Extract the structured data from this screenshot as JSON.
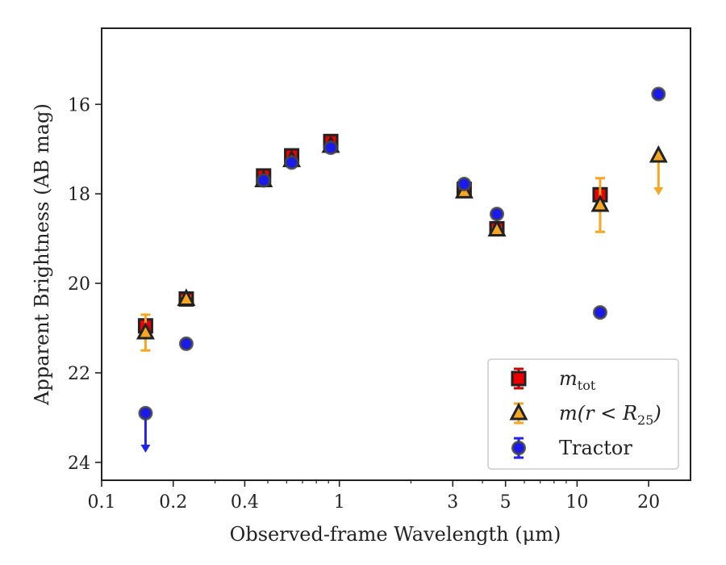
{
  "chart_data": {
    "type": "scatter",
    "title": "",
    "xlabel": "Observed-frame Wavelength (μm)",
    "ylabel": "Apparent Brightness (AB mag)",
    "xscale": "log",
    "xlim": [
      0.1,
      30
    ],
    "ylim": [
      24.4,
      14.3
    ],
    "y_inverted": true,
    "x_ticks": [
      {
        "value": 0.1,
        "label": "0.1"
      },
      {
        "value": 0.2,
        "label": "0.2"
      },
      {
        "value": 0.4,
        "label": "0.4"
      },
      {
        "value": 1,
        "label": "1"
      },
      {
        "value": 3,
        "label": "3"
      },
      {
        "value": 5,
        "label": "5"
      },
      {
        "value": 10,
        "label": "10"
      },
      {
        "value": 20,
        "label": "20"
      }
    ],
    "y_ticks": [
      {
        "value": 16,
        "label": "16"
      },
      {
        "value": 18,
        "label": "18"
      },
      {
        "value": 20,
        "label": "20"
      },
      {
        "value": 22,
        "label": "22"
      },
      {
        "value": 24,
        "label": "24"
      }
    ],
    "grid": false,
    "legend_position": "bottom-right",
    "series": [
      {
        "key": "mtot",
        "name": "m_tot",
        "marker": "square",
        "color": "#ee0000",
        "errcolor": "#cc0000",
        "points": [
          {
            "x": 0.153,
            "y": 20.95,
            "err": 0.05
          },
          {
            "x": 0.227,
            "y": 20.35,
            "err": 0.04
          },
          {
            "x": 0.48,
            "y": 17.6,
            "err": 0.03
          },
          {
            "x": 0.63,
            "y": 17.15,
            "err": 0.03
          },
          {
            "x": 0.92,
            "y": 16.83,
            "err": 0.03
          },
          {
            "x": 3.35,
            "y": 17.9,
            "err": 0.03
          },
          {
            "x": 4.6,
            "y": 18.78,
            "err": 0.04
          },
          {
            "x": 12.5,
            "y": 18.02,
            "err": 0.06
          }
        ]
      },
      {
        "key": "mr25",
        "name": "m(r < R25)",
        "marker": "triangle",
        "color": "#f5a623",
        "errcolor": "#f5a623",
        "points": [
          {
            "x": 0.153,
            "y": 21.1,
            "err": 0.4
          },
          {
            "x": 0.227,
            "y": 20.35,
            "err": 0.05
          },
          {
            "x": 0.48,
            "y": 17.7,
            "err": 0.03
          },
          {
            "x": 0.63,
            "y": 17.25,
            "err": 0.03
          },
          {
            "x": 0.92,
            "y": 16.93,
            "err": 0.03
          },
          {
            "x": 3.35,
            "y": 17.95,
            "err": 0.03
          },
          {
            "x": 4.6,
            "y": 18.8,
            "err": 0.04
          },
          {
            "x": 12.5,
            "y": 18.25,
            "err": 0.6
          },
          {
            "x": 22.0,
            "y": 17.15,
            "upper_limit": true
          }
        ]
      },
      {
        "key": "tractor",
        "name": "Tractor",
        "marker": "circle",
        "color": "#1a1aee",
        "errcolor": "#2222ee",
        "points": [
          {
            "x": 0.153,
            "y": 22.9,
            "upper_limit": true
          },
          {
            "x": 0.227,
            "y": 21.35,
            "err": 0.05
          },
          {
            "x": 0.48,
            "y": 17.7,
            "err": 0.03
          },
          {
            "x": 0.63,
            "y": 17.3,
            "err": 0.03
          },
          {
            "x": 0.92,
            "y": 16.97,
            "err": 0.03
          },
          {
            "x": 3.35,
            "y": 17.78,
            "err": 0.03
          },
          {
            "x": 4.6,
            "y": 18.45,
            "err": 0.04
          },
          {
            "x": 12.5,
            "y": 20.65,
            "err": 0.05
          },
          {
            "x": 22.0,
            "y": 15.77,
            "err": 0.05
          }
        ]
      }
    ]
  },
  "legend": {
    "items": [
      {
        "key": "mtot",
        "label_main": "m",
        "label_sub": "tot",
        "label_rest": ""
      },
      {
        "key": "mr25",
        "label_main": "m(r < R",
        "label_sub": "25",
        "label_rest": ")"
      },
      {
        "key": "tractor",
        "label_main": "Tractor",
        "label_sub": "",
        "label_rest": ""
      }
    ]
  }
}
